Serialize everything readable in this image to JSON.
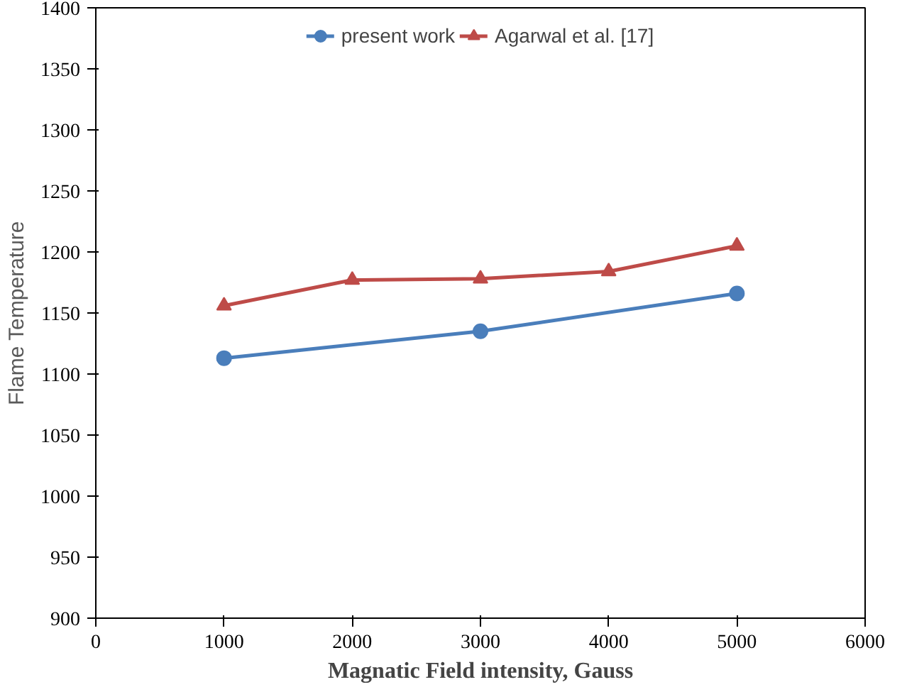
{
  "chart_data": {
    "type": "line",
    "xlabel": "Magnatic Field intensity, Gauss",
    "ylabel": "Flame Temperature",
    "series": [
      {
        "name": "present work",
        "color": "#4a7ebb",
        "marker": "circle",
        "x": [
          1000,
          3000,
          5000
        ],
        "values": [
          1113,
          1135,
          1166
        ]
      },
      {
        "name": "Agarwal et al. [17]",
        "color": "#be4b48",
        "marker": "triangle",
        "x": [
          1000,
          2000,
          3000,
          4000,
          5000
        ],
        "values": [
          1156,
          1177,
          1178,
          1184,
          1205
        ]
      }
    ],
    "xlim": [
      0,
      6000
    ],
    "xticks": [
      0,
      1000,
      2000,
      3000,
      4000,
      5000,
      6000
    ],
    "ylim": [
      900,
      1400
    ],
    "yticks": [
      900,
      950,
      1000,
      1050,
      1100,
      1150,
      1200,
      1250,
      1300,
      1350,
      1400
    ],
    "grid": false,
    "legend": "top",
    "line_style": "solid"
  }
}
